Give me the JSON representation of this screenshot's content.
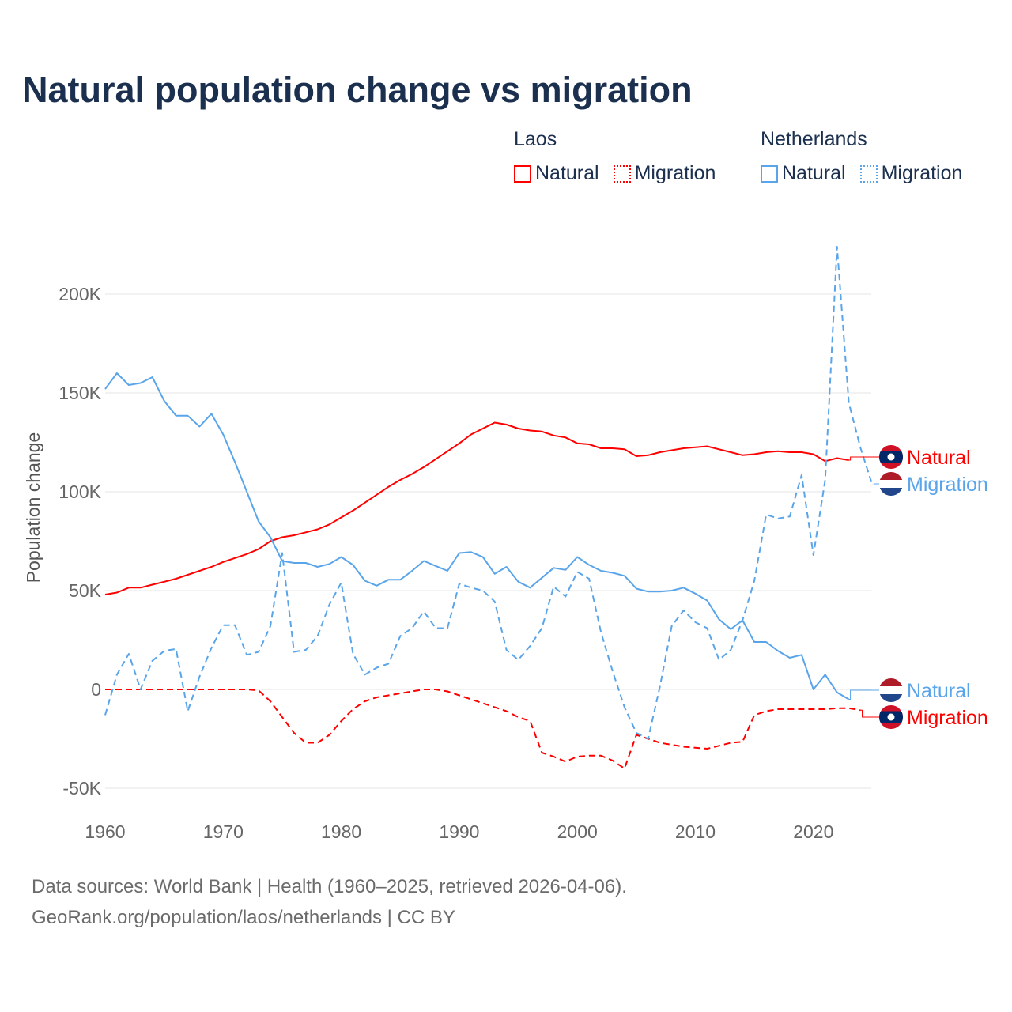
{
  "chart_data": {
    "type": "line",
    "title": "Natural population change vs migration",
    "ylabel": "Population change",
    "xlabel": "",
    "xlim": [
      1960,
      2025
    ],
    "ylim": [
      -50000,
      225000
    ],
    "y_ticks": [
      -50000,
      0,
      50000,
      100000,
      150000,
      200000
    ],
    "y_tick_labels": [
      "-50K",
      "0",
      "50K",
      "100K",
      "150K",
      "200K"
    ],
    "x_ticks": [
      1960,
      1970,
      1980,
      1990,
      2000,
      2010,
      2020
    ],
    "x_tick_labels": [
      "1960",
      "1970",
      "1980",
      "1990",
      "2000",
      "2010",
      "2020"
    ],
    "grid": true,
    "legend_position": "top-right",
    "legend_groups": [
      {
        "name": "Laos",
        "items": [
          "Natural",
          "Migration"
        ]
      },
      {
        "name": "Netherlands",
        "items": [
          "Natural",
          "Migration"
        ]
      }
    ],
    "x_start": 1960,
    "series": [
      {
        "name": "Laos Natural",
        "country": "Laos",
        "kind": "Natural",
        "color": "#ff0000",
        "dash": false,
        "label": "Natural",
        "values": [
          48,
          49,
          51.5,
          51.5,
          53,
          54.5,
          56,
          58,
          60,
          62,
          64.5,
          66.5,
          68.5,
          71,
          75,
          77,
          78,
          79.5,
          81,
          83.5,
          87,
          90.5,
          94.5,
          98.5,
          102.5,
          106,
          109,
          112.5,
          116.5,
          120.5,
          124.5,
          129,
          132,
          135,
          134,
          132,
          131,
          130.5,
          128.5,
          127.5,
          124.5,
          124,
          122,
          122,
          121.5,
          118,
          118.5,
          120,
          121,
          122,
          122.5,
          123,
          121.5,
          120,
          118.5,
          119,
          120,
          120.5,
          120,
          120,
          119,
          115.5,
          117,
          116
        ]
      },
      {
        "name": "Laos Migration",
        "country": "Laos",
        "kind": "Migration",
        "color": "#ff0000",
        "dash": true,
        "label": "Migration",
        "values": [
          0,
          0,
          0,
          0,
          0,
          0,
          0,
          0,
          0,
          0,
          0,
          0,
          0,
          -0.5,
          -6,
          -14,
          -22,
          -27,
          -27,
          -23,
          -16,
          -10,
          -6,
          -4,
          -3,
          -2,
          -1,
          0,
          0,
          -1,
          -3,
          -5,
          -7,
          -9,
          -11,
          -14,
          -16,
          -32,
          -34,
          -36.5,
          -34,
          -33.5,
          -33.5,
          -36,
          -40,
          -23,
          -25,
          -27,
          -28,
          -29,
          -29.5,
          -30,
          -28.5,
          -27,
          -26.5,
          -13,
          -11,
          -10,
          -10,
          -10,
          -10,
          -10,
          -9.5,
          -9.5,
          -10.5
        ]
      },
      {
        "name": "Netherlands Natural",
        "country": "Netherlands",
        "kind": "Natural",
        "color": "#5aa5ea",
        "dash": false,
        "label": "Natural",
        "values": [
          152,
          160,
          154,
          155,
          158,
          146,
          138.5,
          138.5,
          133,
          139.5,
          129,
          115,
          100,
          85,
          77,
          65,
          64,
          64,
          62,
          63.5,
          67,
          63,
          55,
          52.5,
          55.5,
          55.5,
          60,
          65,
          62.5,
          60,
          69,
          69.5,
          67,
          58.5,
          62,
          54.5,
          51.5,
          56.5,
          61.5,
          60.5,
          67,
          63,
          60,
          59,
          57.5,
          51,
          49.5,
          49.5,
          50,
          51.5,
          48.5,
          45,
          35.5,
          30.5,
          35,
          24,
          24,
          19.5,
          16,
          17.5,
          0,
          7.5,
          -1.5,
          -5
        ]
      },
      {
        "name": "Netherlands Migration",
        "country": "Netherlands",
        "kind": "Migration",
        "color": "#5aa5ea",
        "dash": true,
        "label": "Migration",
        "values": [
          -13,
          7.5,
          18,
          0,
          14.5,
          19.5,
          20.5,
          -11,
          6.5,
          21,
          32.5,
          32.5,
          17.5,
          19,
          32,
          69,
          19,
          20,
          27,
          43,
          54,
          18,
          7.5,
          11,
          13,
          27,
          31,
          39.5,
          31,
          31,
          53.5,
          51.5,
          50,
          44.5,
          20,
          15,
          22,
          31,
          52,
          47,
          59.5,
          56,
          29,
          9,
          -9,
          -22,
          -25,
          1.5,
          32,
          40,
          34,
          31,
          15,
          20,
          35,
          55,
          88.5,
          86.5,
          87.5,
          108.5,
          68,
          106,
          224,
          145,
          122,
          103.5
        ]
      }
    ],
    "value_unit": "thousands"
  },
  "footer": {
    "line1": "Data sources: World Bank | Health (1960–2025, retrieved 2026-04-06).",
    "line2": "GeoRank.org/population/laos/netherlands | CC BY"
  }
}
